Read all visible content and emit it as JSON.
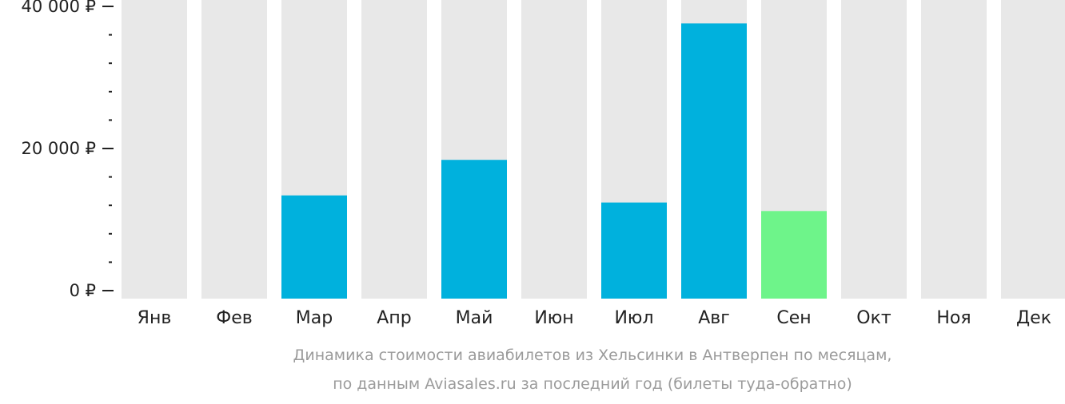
{
  "chart_data": {
    "type": "bar",
    "categories": [
      "Янв",
      "Фев",
      "Мар",
      "Апр",
      "Май",
      "Июн",
      "Июл",
      "Авг",
      "Сен",
      "Окт",
      "Ноя",
      "Дек"
    ],
    "values": [
      null,
      null,
      13400,
      null,
      18400,
      null,
      12400,
      37600,
      11200,
      null,
      null,
      null
    ],
    "highlight": [
      false,
      false,
      false,
      false,
      false,
      false,
      false,
      false,
      true,
      false,
      false,
      false
    ],
    "ylim": [
      0,
      40000
    ],
    "yticks": [
      {
        "value": 0,
        "label": "0 ₽"
      },
      {
        "value": 20000,
        "label": "20 000 ₽"
      },
      {
        "value": 40000,
        "label": "40 000 ₽"
      }
    ],
    "minor_ticks": [
      4000,
      8000,
      12000,
      16000,
      24000,
      28000,
      32000,
      36000
    ],
    "caption": [
      "Динамика стоимости авиабилетов из Хельсинки в Антверпен по месяцам,",
      "по данным Aviasales.ru за последний год (билеты туда-обратно)"
    ],
    "colors": {
      "bar": "#00b1dd",
      "highlight": "#6ef48a",
      "background_column": "#e8e8e8",
      "axis": "#222222",
      "caption": "#9b9b9b"
    }
  }
}
